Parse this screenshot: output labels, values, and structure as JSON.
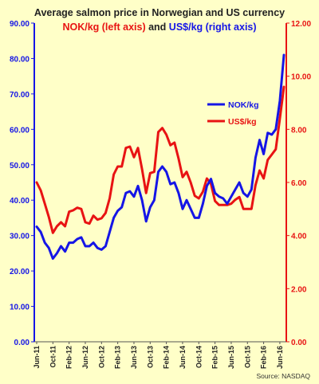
{
  "chart_data": {
    "type": "line",
    "title_line1": "Average salmon price in Norwegian and US currency",
    "title_line2_left": "NOK/kg (left axis)",
    "title_line2_mid": " and ",
    "title_line2_right": "US$/kg (right axis)",
    "source": "Source: NASDAQ",
    "colors": {
      "nok": "#1515e6",
      "usd": "#e81313",
      "background": "#ffffc8",
      "grid": "#d8d8c0"
    },
    "grid": false,
    "legend_position": "right-middle",
    "x_tick_labels": [
      "Jun-11",
      "Oct-11",
      "Feb-12",
      "Jun-12",
      "Oct-12",
      "Feb-13",
      "Jun-13",
      "Oct-13",
      "Feb-14",
      "Jun-14",
      "Oct-14",
      "Feb-15",
      "Jun-15",
      "Oct-15",
      "Feb-16",
      "Jun-16"
    ],
    "y_left": {
      "ticks": [
        "0.00",
        "10.00",
        "20.00",
        "30.00",
        "40.00",
        "50.00",
        "60.00",
        "70.00",
        "80.00",
        "90.00"
      ],
      "min": 0,
      "max": 90
    },
    "y_right": {
      "ticks": [
        "0.00",
        "2.00",
        "4.00",
        "6.00",
        "8.00",
        "10.00",
        "12.00"
      ],
      "min": 0,
      "max": 12
    },
    "series": [
      {
        "name": "NOK/kg",
        "axis": "left",
        "values": [
          32.5,
          31.0,
          28.0,
          26.5,
          23.5,
          25.0,
          27.0,
          25.5,
          28.0,
          28.0,
          29.0,
          29.5,
          27.0,
          27.0,
          28.0,
          26.5,
          26.0,
          27.0,
          31.0,
          35.0,
          37.0,
          38.0,
          42.0,
          42.5,
          41.0,
          44.0,
          40.0,
          34.0,
          38.0,
          40.0,
          48.0,
          49.5,
          48.0,
          44.5,
          45.0,
          42.0,
          37.5,
          40.0,
          37.5,
          35.0,
          35.0,
          39.0,
          44.0,
          46.0,
          42.0,
          41.0,
          40.5,
          39.0,
          41.0,
          43.0,
          45.0,
          42.0,
          41.0,
          43.0,
          52.0,
          57.0,
          53.0,
          59.0,
          58.5,
          60.0,
          68.0,
          81.0
        ]
      },
      {
        "name": "US$/kg",
        "axis": "right",
        "values": [
          6.0,
          5.7,
          5.2,
          4.7,
          4.1,
          4.35,
          4.5,
          4.35,
          4.9,
          4.95,
          5.05,
          5.0,
          4.5,
          4.45,
          4.75,
          4.6,
          4.65,
          4.85,
          5.4,
          6.3,
          6.6,
          6.6,
          7.3,
          7.35,
          6.95,
          7.3,
          6.5,
          5.6,
          6.35,
          6.4,
          7.9,
          8.05,
          7.8,
          7.4,
          7.5,
          6.9,
          6.2,
          6.4,
          6.0,
          5.5,
          5.4,
          5.65,
          6.15,
          5.95,
          5.3,
          5.15,
          5.15,
          5.15,
          5.2,
          5.35,
          5.45,
          5.0,
          5.0,
          5.0,
          5.9,
          6.45,
          6.15,
          6.85,
          7.05,
          7.25,
          8.4,
          9.6
        ]
      }
    ]
  }
}
